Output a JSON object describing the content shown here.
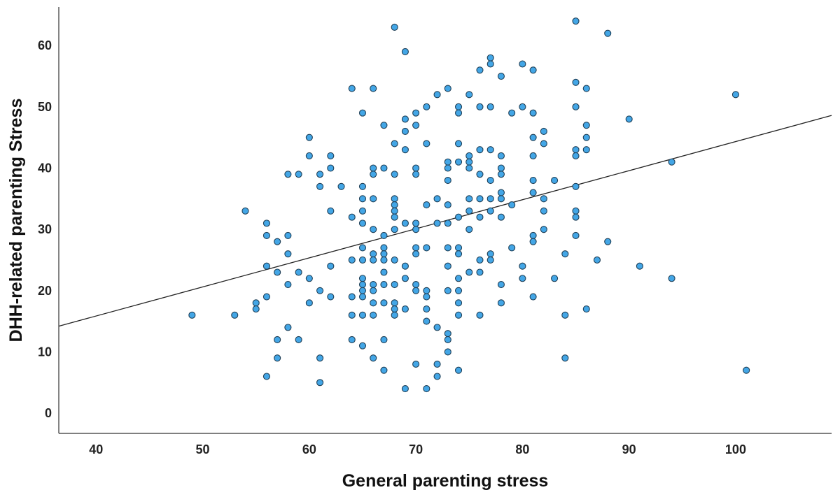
{
  "chart_data": {
    "type": "scatter",
    "xlabel": "General parenting stress",
    "ylabel": "DHH-related parenting Stress",
    "xlim": [
      36.5,
      109
    ],
    "ylim": [
      -3.3,
      66.3
    ],
    "x_ticks": [
      "40",
      "50",
      "60",
      "70",
      "80",
      "90",
      "100"
    ],
    "y_ticks": [
      "0",
      "10",
      "20",
      "30",
      "40",
      "50",
      "60"
    ],
    "grid": false,
    "legend": "none",
    "point_color": "#43a6e6",
    "point_edge_color": "#1f3f56",
    "fit_line": {
      "type": "linear",
      "color": "#222222",
      "x": [
        36.5,
        109
      ],
      "y": [
        14.2,
        48.6
      ]
    },
    "points": [
      [
        49,
        16
      ],
      [
        53,
        16
      ],
      [
        54,
        33
      ],
      [
        55,
        18
      ],
      [
        55,
        17
      ],
      [
        56,
        31
      ],
      [
        56,
        29
      ],
      [
        56,
        24
      ],
      [
        56,
        19
      ],
      [
        56,
        6
      ],
      [
        57,
        28
      ],
      [
        57,
        23
      ],
      [
        57,
        12
      ],
      [
        57,
        9
      ],
      [
        58,
        39
      ],
      [
        58,
        29
      ],
      [
        58,
        26
      ],
      [
        58,
        21
      ],
      [
        58,
        14
      ],
      [
        59,
        39
      ],
      [
        59,
        23
      ],
      [
        59,
        12
      ],
      [
        60,
        45
      ],
      [
        60,
        42
      ],
      [
        60,
        22
      ],
      [
        60,
        18
      ],
      [
        61,
        39
      ],
      [
        61,
        37
      ],
      [
        61,
        20
      ],
      [
        61,
        9
      ],
      [
        61,
        5
      ],
      [
        62,
        42
      ],
      [
        62,
        40
      ],
      [
        62,
        33
      ],
      [
        62,
        24
      ],
      [
        62,
        19
      ],
      [
        63,
        37
      ],
      [
        64,
        53
      ],
      [
        64,
        32
      ],
      [
        64,
        25
      ],
      [
        64,
        19
      ],
      [
        64,
        16
      ],
      [
        64,
        12
      ],
      [
        65,
        49
      ],
      [
        65,
        37
      ],
      [
        65,
        35
      ],
      [
        65,
        33
      ],
      [
        65,
        31
      ],
      [
        65,
        27
      ],
      [
        65,
        25
      ],
      [
        65,
        22
      ],
      [
        65,
        21
      ],
      [
        65,
        20
      ],
      [
        65,
        19
      ],
      [
        65,
        16
      ],
      [
        65,
        11
      ],
      [
        66,
        53
      ],
      [
        66,
        40
      ],
      [
        66,
        39
      ],
      [
        66,
        35
      ],
      [
        66,
        30
      ],
      [
        66,
        26
      ],
      [
        66,
        25
      ],
      [
        66,
        21
      ],
      [
        66,
        20
      ],
      [
        66,
        18
      ],
      [
        66,
        16
      ],
      [
        66,
        9
      ],
      [
        67,
        47
      ],
      [
        67,
        40
      ],
      [
        67,
        29
      ],
      [
        67,
        27
      ],
      [
        67,
        26
      ],
      [
        67,
        25
      ],
      [
        67,
        23
      ],
      [
        67,
        21
      ],
      [
        67,
        18
      ],
      [
        67,
        12
      ],
      [
        67,
        7
      ],
      [
        68,
        63
      ],
      [
        68,
        44
      ],
      [
        68,
        39
      ],
      [
        68,
        35
      ],
      [
        68,
        34
      ],
      [
        68,
        33
      ],
      [
        68,
        32
      ],
      [
        68,
        30
      ],
      [
        68,
        25
      ],
      [
        68,
        21
      ],
      [
        68,
        18
      ],
      [
        68,
        17
      ],
      [
        68,
        16
      ],
      [
        69,
        59
      ],
      [
        69,
        48
      ],
      [
        69,
        46
      ],
      [
        69,
        43
      ],
      [
        69,
        31
      ],
      [
        69,
        24
      ],
      [
        69,
        22
      ],
      [
        69,
        17
      ],
      [
        69,
        4
      ],
      [
        70,
        49
      ],
      [
        70,
        47
      ],
      [
        70,
        40
      ],
      [
        70,
        39
      ],
      [
        70,
        31
      ],
      [
        70,
        30
      ],
      [
        70,
        27
      ],
      [
        70,
        26
      ],
      [
        70,
        21
      ],
      [
        70,
        20
      ],
      [
        70,
        8
      ],
      [
        71,
        50
      ],
      [
        71,
        44
      ],
      [
        71,
        34
      ],
      [
        71,
        27
      ],
      [
        71,
        20
      ],
      [
        71,
        19
      ],
      [
        71,
        17
      ],
      [
        71,
        15
      ],
      [
        71,
        4
      ],
      [
        72,
        52
      ],
      [
        72,
        35
      ],
      [
        72,
        31
      ],
      [
        72,
        14
      ],
      [
        72,
        8
      ],
      [
        72,
        6
      ],
      [
        73,
        53
      ],
      [
        73,
        41
      ],
      [
        73,
        40
      ],
      [
        73,
        38
      ],
      [
        73,
        34
      ],
      [
        73,
        31
      ],
      [
        73,
        27
      ],
      [
        73,
        24
      ],
      [
        73,
        20
      ],
      [
        73,
        13
      ],
      [
        73,
        12
      ],
      [
        73,
        10
      ],
      [
        74,
        50
      ],
      [
        74,
        49
      ],
      [
        74,
        44
      ],
      [
        74,
        41
      ],
      [
        74,
        32
      ],
      [
        74,
        27
      ],
      [
        74,
        26
      ],
      [
        74,
        22
      ],
      [
        74,
        20
      ],
      [
        74,
        18
      ],
      [
        74,
        16
      ],
      [
        74,
        7
      ],
      [
        75,
        52
      ],
      [
        75,
        42
      ],
      [
        75,
        41
      ],
      [
        75,
        40
      ],
      [
        75,
        35
      ],
      [
        75,
        33
      ],
      [
        75,
        30
      ],
      [
        75,
        23
      ],
      [
        76,
        56
      ],
      [
        76,
        50
      ],
      [
        76,
        43
      ],
      [
        76,
        39
      ],
      [
        76,
        35
      ],
      [
        76,
        32
      ],
      [
        76,
        25
      ],
      [
        76,
        23
      ],
      [
        76,
        16
      ],
      [
        77,
        58
      ],
      [
        77,
        57
      ],
      [
        77,
        50
      ],
      [
        77,
        43
      ],
      [
        77,
        38
      ],
      [
        77,
        35
      ],
      [
        77,
        33
      ],
      [
        77,
        26
      ],
      [
        77,
        25
      ],
      [
        78,
        55
      ],
      [
        78,
        42
      ],
      [
        78,
        40
      ],
      [
        78,
        39
      ],
      [
        78,
        36
      ],
      [
        78,
        35
      ],
      [
        78,
        32
      ],
      [
        78,
        21
      ],
      [
        78,
        18
      ],
      [
        79,
        49
      ],
      [
        79,
        34
      ],
      [
        79,
        27
      ],
      [
        80,
        57
      ],
      [
        80,
        50
      ],
      [
        80,
        24
      ],
      [
        80,
        22
      ],
      [
        81,
        56
      ],
      [
        81,
        49
      ],
      [
        81,
        45
      ],
      [
        81,
        42
      ],
      [
        81,
        38
      ],
      [
        81,
        36
      ],
      [
        81,
        29
      ],
      [
        81,
        28
      ],
      [
        81,
        19
      ],
      [
        82,
        46
      ],
      [
        82,
        44
      ],
      [
        82,
        35
      ],
      [
        82,
        33
      ],
      [
        82,
        30
      ],
      [
        83,
        38
      ],
      [
        83,
        22
      ],
      [
        84,
        26
      ],
      [
        84,
        16
      ],
      [
        84,
        9
      ],
      [
        85,
        64
      ],
      [
        85,
        54
      ],
      [
        85,
        50
      ],
      [
        85,
        43
      ],
      [
        85,
        42
      ],
      [
        85,
        37
      ],
      [
        85,
        33
      ],
      [
        85,
        32
      ],
      [
        85,
        29
      ],
      [
        86,
        53
      ],
      [
        86,
        47
      ],
      [
        86,
        45
      ],
      [
        86,
        43
      ],
      [
        86,
        17
      ],
      [
        87,
        25
      ],
      [
        88,
        62
      ],
      [
        88,
        28
      ],
      [
        90,
        48
      ],
      [
        91,
        24
      ],
      [
        94,
        41
      ],
      [
        94,
        22
      ],
      [
        100,
        52
      ],
      [
        101,
        7
      ]
    ]
  }
}
